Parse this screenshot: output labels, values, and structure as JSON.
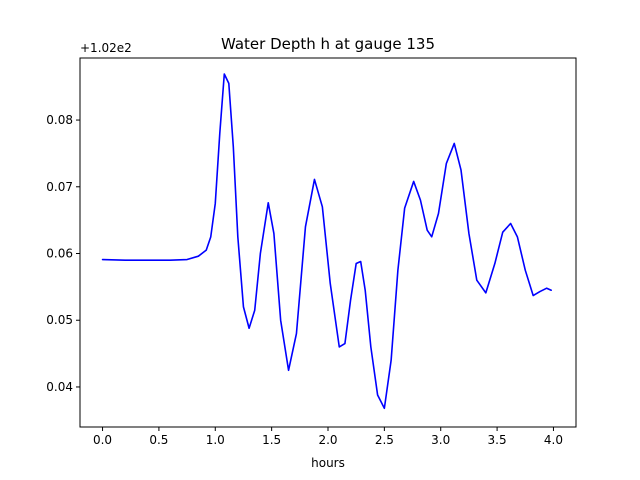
{
  "chart_data": {
    "type": "line",
    "title": "Water Depth h at gauge 135",
    "xlabel": "hours",
    "ylabel": "",
    "offset_label": "+1.02e2",
    "xlim": [
      -0.2,
      4.2
    ],
    "ylim": [
      0.034,
      0.0893
    ],
    "xticks": [
      0.0,
      0.5,
      1.0,
      1.5,
      2.0,
      2.5,
      3.0,
      3.5,
      4.0
    ],
    "xtick_labels": [
      "0.0",
      "0.5",
      "1.0",
      "1.5",
      "2.0",
      "2.5",
      "3.0",
      "3.5",
      "4.0"
    ],
    "yticks": [
      0.04,
      0.05,
      0.06,
      0.07,
      0.08
    ],
    "ytick_labels": [
      "0.04",
      "0.05",
      "0.06",
      "0.07",
      "0.08"
    ],
    "grid": false,
    "series": [
      {
        "color": "#0000ff",
        "x": [
          0.0,
          0.2,
          0.4,
          0.6,
          0.75,
          0.85,
          0.92,
          0.96,
          1.0,
          1.04,
          1.08,
          1.12,
          1.16,
          1.2,
          1.25,
          1.3,
          1.35,
          1.4,
          1.47,
          1.52,
          1.58,
          1.65,
          1.72,
          1.8,
          1.88,
          1.95,
          2.02,
          2.1,
          2.15,
          2.2,
          2.25,
          2.29,
          2.33,
          2.38,
          2.44,
          2.5,
          2.56,
          2.62,
          2.68,
          2.76,
          2.82,
          2.88,
          2.92,
          2.98,
          3.05,
          3.12,
          3.18,
          3.25,
          3.32,
          3.4,
          3.48,
          3.55,
          3.62,
          3.68,
          3.75,
          3.82,
          3.88,
          3.94,
          3.98
        ],
        "y": [
          0.0591,
          0.059,
          0.059,
          0.059,
          0.0591,
          0.0596,
          0.0605,
          0.0625,
          0.0675,
          0.078,
          0.0869,
          0.0855,
          0.076,
          0.0625,
          0.052,
          0.0488,
          0.0515,
          0.06,
          0.0676,
          0.063,
          0.05,
          0.0425,
          0.048,
          0.064,
          0.0711,
          0.067,
          0.0555,
          0.046,
          0.0465,
          0.053,
          0.0585,
          0.0588,
          0.0545,
          0.046,
          0.0388,
          0.0368,
          0.044,
          0.0575,
          0.0668,
          0.0708,
          0.068,
          0.0635,
          0.0625,
          0.066,
          0.0735,
          0.0765,
          0.0725,
          0.063,
          0.056,
          0.0541,
          0.0585,
          0.0632,
          0.0645,
          0.0625,
          0.0575,
          0.0537,
          0.0543,
          0.0548,
          0.0545
        ]
      }
    ]
  }
}
